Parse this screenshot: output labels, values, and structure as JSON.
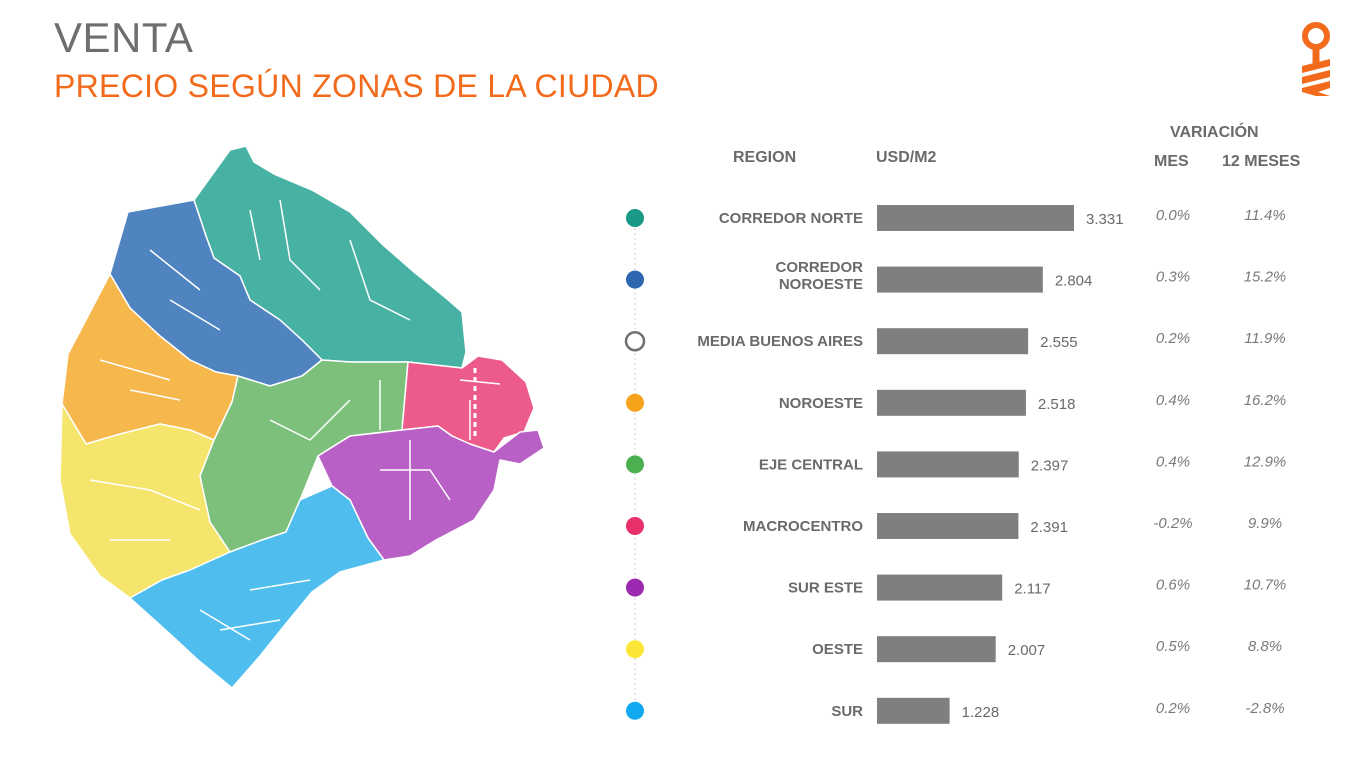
{
  "header": {
    "title": "VENTA",
    "subtitle": "PRECIO SEGÚN ZONAS DE LA CIUDAD"
  },
  "logo": {
    "icon": "key-logo-icon",
    "color": "#f26b1d"
  },
  "map": {
    "icon": "city-zones-map"
  },
  "columns": {
    "region": "REGION",
    "price": "USD/M2",
    "variation": "VARIACIÓN",
    "month": "MES",
    "year": "12 MESES"
  },
  "chart_data": {
    "type": "bar",
    "orientation": "horizontal",
    "categories": [
      "CORREDOR NORTE",
      "CORREDOR NOROESTE",
      "MEDIA BUENOS AIRES",
      "NOROESTE",
      "EJE CENTRAL",
      "MACROCENTRO",
      "SUR ESTE",
      "OESTE",
      "SUR"
    ],
    "category_lines": [
      [
        "CORREDOR NORTE"
      ],
      [
        "CORREDOR",
        "NOROESTE"
      ],
      [
        "MEDIA BUENOS AIRES"
      ],
      [
        "NOROESTE"
      ],
      [
        "EJE CENTRAL"
      ],
      [
        "MACROCENTRO"
      ],
      [
        "SUR ESTE"
      ],
      [
        "OESTE"
      ],
      [
        "SUR"
      ]
    ],
    "values": [
      3331,
      2804,
      2555,
      2518,
      2397,
      2391,
      2117,
      2007,
      1228
    ],
    "value_labels": [
      "3.331",
      "2.804",
      "2.555",
      "2.518",
      "2.397",
      "2.391",
      "2.117",
      "2.007",
      "1.228"
    ],
    "variation_month": [
      "0.0%",
      "0.3%",
      "0.2%",
      "0.4%",
      "0.4%",
      "-0.2%",
      "0.6%",
      "0.5%",
      "0.2%"
    ],
    "variation_12m": [
      "11.4%",
      "15.2%",
      "11.9%",
      "16.2%",
      "12.9%",
      "9.9%",
      "10.7%",
      "8.8%",
      "-2.8%"
    ],
    "dot_colors": [
      "#1a9a86",
      "#2e66b0",
      "#ffffff",
      "#f7a21b",
      "#4caf50",
      "#e8306a",
      "#9c2ab0",
      "#fbe637",
      "#12a9f0"
    ],
    "bar_color": "#7f7f7f",
    "xlim": [
      0,
      3331
    ]
  }
}
